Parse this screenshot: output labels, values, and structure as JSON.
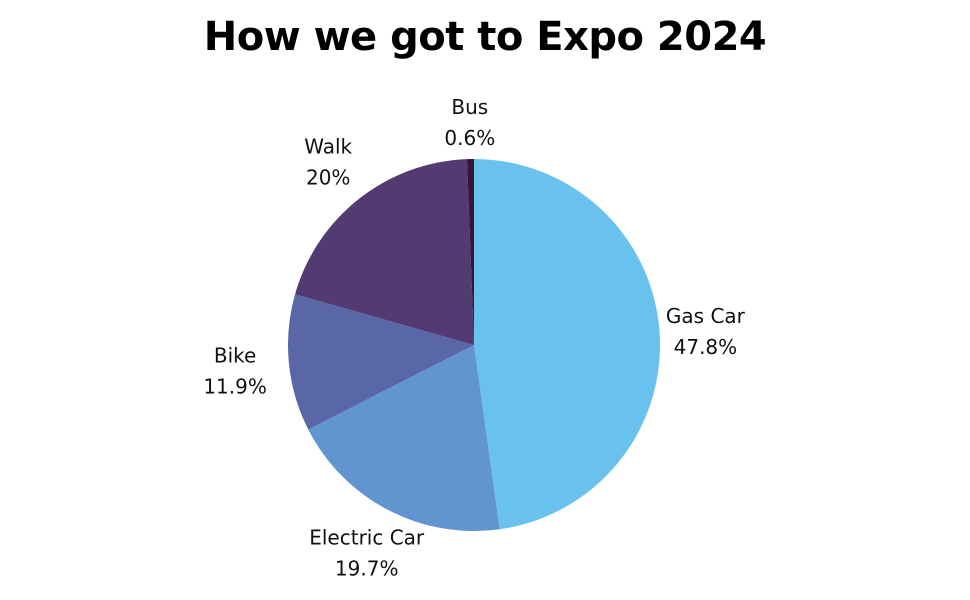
{
  "chart_data": {
    "type": "pie",
    "title": "How we got to Expo 2024",
    "start_angle_deg": 0,
    "direction": "clockwise",
    "slices": [
      {
        "label": "Gas Car",
        "value": 47.8,
        "display": "47.8%",
        "color": "#69c1ee"
      },
      {
        "label": "Electric Car",
        "value": 19.7,
        "display": "19.7%",
        "color": "#6095cf"
      },
      {
        "label": "Bike",
        "value": 11.9,
        "display": "11.9%",
        "color": "#5a67a6"
      },
      {
        "label": "Walk",
        "value": 20,
        "display": "20%",
        "color": "#533a73"
      },
      {
        "label": "Bus",
        "value": 0.6,
        "display": "0.6%",
        "color": "#3b1238"
      }
    ]
  }
}
